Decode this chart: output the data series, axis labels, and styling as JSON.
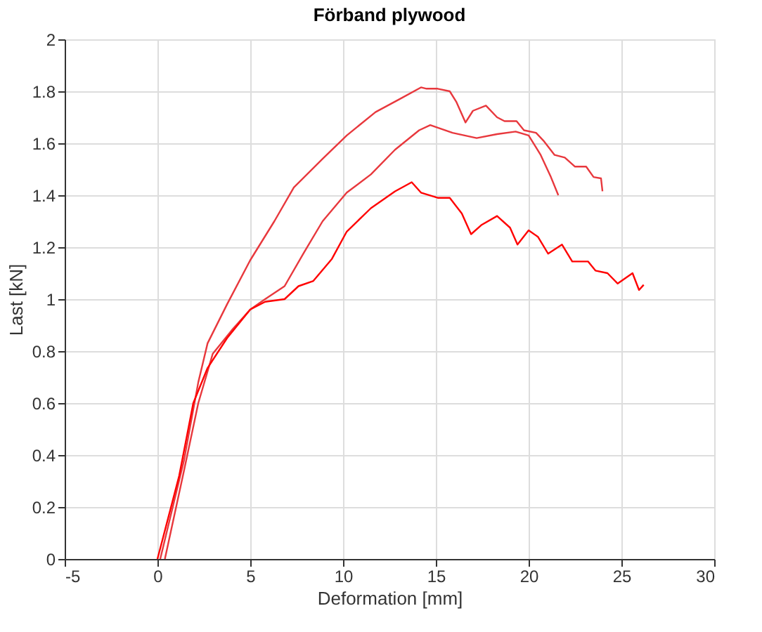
{
  "chart_data": {
    "type": "line",
    "title": "Förband plywood",
    "xlabel": "Deformation [mm]",
    "ylabel": "Last [kN]",
    "xlim": [
      -5,
      30
    ],
    "xticks": [
      -5,
      0,
      5,
      10,
      15,
      20,
      25,
      30
    ],
    "ylim": [
      0,
      2
    ],
    "yticks": [
      0,
      0.2,
      0.4,
      0.6,
      0.8,
      1,
      1.2,
      1.4,
      1.6,
      1.8,
      2
    ],
    "grid": true,
    "legend": false,
    "marker": "none",
    "line_style": "solid",
    "series": [
      {
        "color": "#e8383d",
        "x": [
          0.15,
          1.43,
          2.2,
          2.7,
          3.75,
          5.0,
          6.3,
          7.35,
          8.9,
          10.2,
          11.75,
          13.05,
          14.2,
          14.5,
          15.1,
          15.75,
          16.1,
          16.6,
          17.0,
          17.7,
          18.3,
          18.7,
          19.35,
          19.75,
          20.4,
          20.8,
          21.4,
          21.95,
          22.5,
          23.1,
          23.5,
          23.9,
          23.98
        ],
        "values": [
          0.0,
          0.38,
          0.68,
          0.83,
          0.98,
          1.15,
          1.3,
          1.43,
          1.54,
          1.63,
          1.72,
          1.77,
          1.815,
          1.81,
          1.81,
          1.8,
          1.76,
          1.68,
          1.725,
          1.745,
          1.7,
          1.685,
          1.685,
          1.65,
          1.64,
          1.61,
          1.555,
          1.545,
          1.51,
          1.51,
          1.47,
          1.465,
          1.415
        ]
      },
      {
        "color": "#e8383d",
        "x": [
          0.4,
          1.43,
          2.2,
          2.98,
          4.0,
          5.0,
          5.8,
          6.85,
          7.9,
          8.9,
          10.2,
          11.5,
          12.8,
          14.1,
          14.7,
          15.9,
          17.2,
          18.3,
          19.3,
          20.0,
          20.65,
          21.2,
          21.6
        ],
        "values": [
          0.0,
          0.34,
          0.6,
          0.79,
          0.88,
          0.96,
          1.0,
          1.05,
          1.18,
          1.3,
          1.41,
          1.48,
          1.575,
          1.65,
          1.67,
          1.64,
          1.62,
          1.635,
          1.645,
          1.63,
          1.555,
          1.47,
          1.4
        ]
      },
      {
        "color": "#ff0000",
        "x": [
          0.0,
          1.17,
          1.93,
          2.7,
          3.75,
          5.0,
          5.8,
          6.85,
          7.6,
          8.4,
          9.4,
          10.2,
          11.5,
          12.8,
          13.7,
          14.2,
          15.1,
          15.75,
          16.4,
          16.9,
          17.45,
          18.3,
          19.0,
          19.4,
          20.0,
          20.5,
          21.05,
          21.8,
          22.35,
          23.2,
          23.6,
          24.25,
          24.8,
          25.6,
          25.95,
          26.2
        ],
        "values": [
          0.0,
          0.32,
          0.6,
          0.735,
          0.85,
          0.96,
          0.99,
          1.0,
          1.05,
          1.07,
          1.155,
          1.26,
          1.35,
          1.415,
          1.45,
          1.41,
          1.39,
          1.39,
          1.33,
          1.25,
          1.285,
          1.32,
          1.275,
          1.21,
          1.265,
          1.24,
          1.175,
          1.21,
          1.145,
          1.145,
          1.11,
          1.1,
          1.06,
          1.1,
          1.035,
          1.055
        ]
      }
    ]
  }
}
